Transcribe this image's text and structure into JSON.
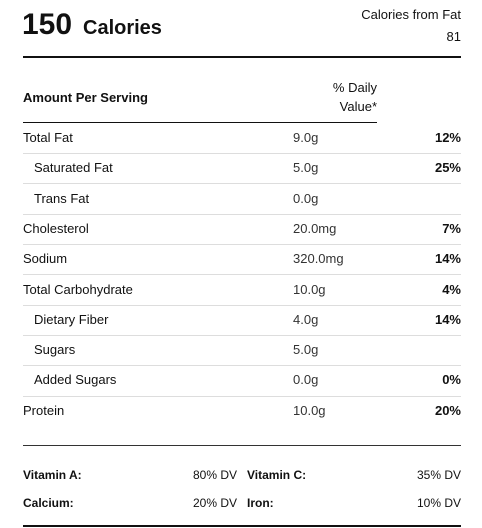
{
  "header": {
    "calories": "150",
    "calories_label": "Calories",
    "fat_calories_label": "Calories from Fat",
    "fat_calories": "81"
  },
  "columns": {
    "amount_per_serving": "Amount Per Serving",
    "daily_value_line1": "% Daily",
    "daily_value_line2": "Value*"
  },
  "nutrients": [
    {
      "name": "Total Fat",
      "amount": "9.0g",
      "daily": "12%",
      "sub": [
        {
          "name": "Saturated Fat",
          "amount": "5.0g",
          "daily": "25%"
        },
        {
          "name": "Trans Fat",
          "amount": "0.0g"
        }
      ]
    },
    {
      "name": "Cholesterol",
      "amount": "20.0mg",
      "daily": "7%"
    },
    {
      "name": "Sodium",
      "amount": "320.0mg",
      "daily": "14%"
    },
    {
      "name": "Total Carbohydrate",
      "amount": "10.0g",
      "daily": "4%",
      "sub": [
        {
          "name": "Dietary Fiber",
          "amount": "4.0g",
          "daily": "14%"
        },
        {
          "name": "Sugars",
          "amount": "5.0g"
        },
        {
          "name": "Added Sugars",
          "amount": "0.0g",
          "daily": "0%"
        }
      ]
    },
    {
      "name": "Protein",
      "amount": "10.0g",
      "daily": "20%"
    }
  ],
  "vitamins": [
    [
      {
        "name": "Vitamin A:",
        "value": "80% DV"
      },
      {
        "name": "Vitamin C:",
        "value": "35% DV"
      }
    ],
    [
      {
        "name": "Calcium:",
        "value": "20% DV"
      },
      {
        "name": "Iron:",
        "value": "10% DV"
      }
    ]
  ]
}
